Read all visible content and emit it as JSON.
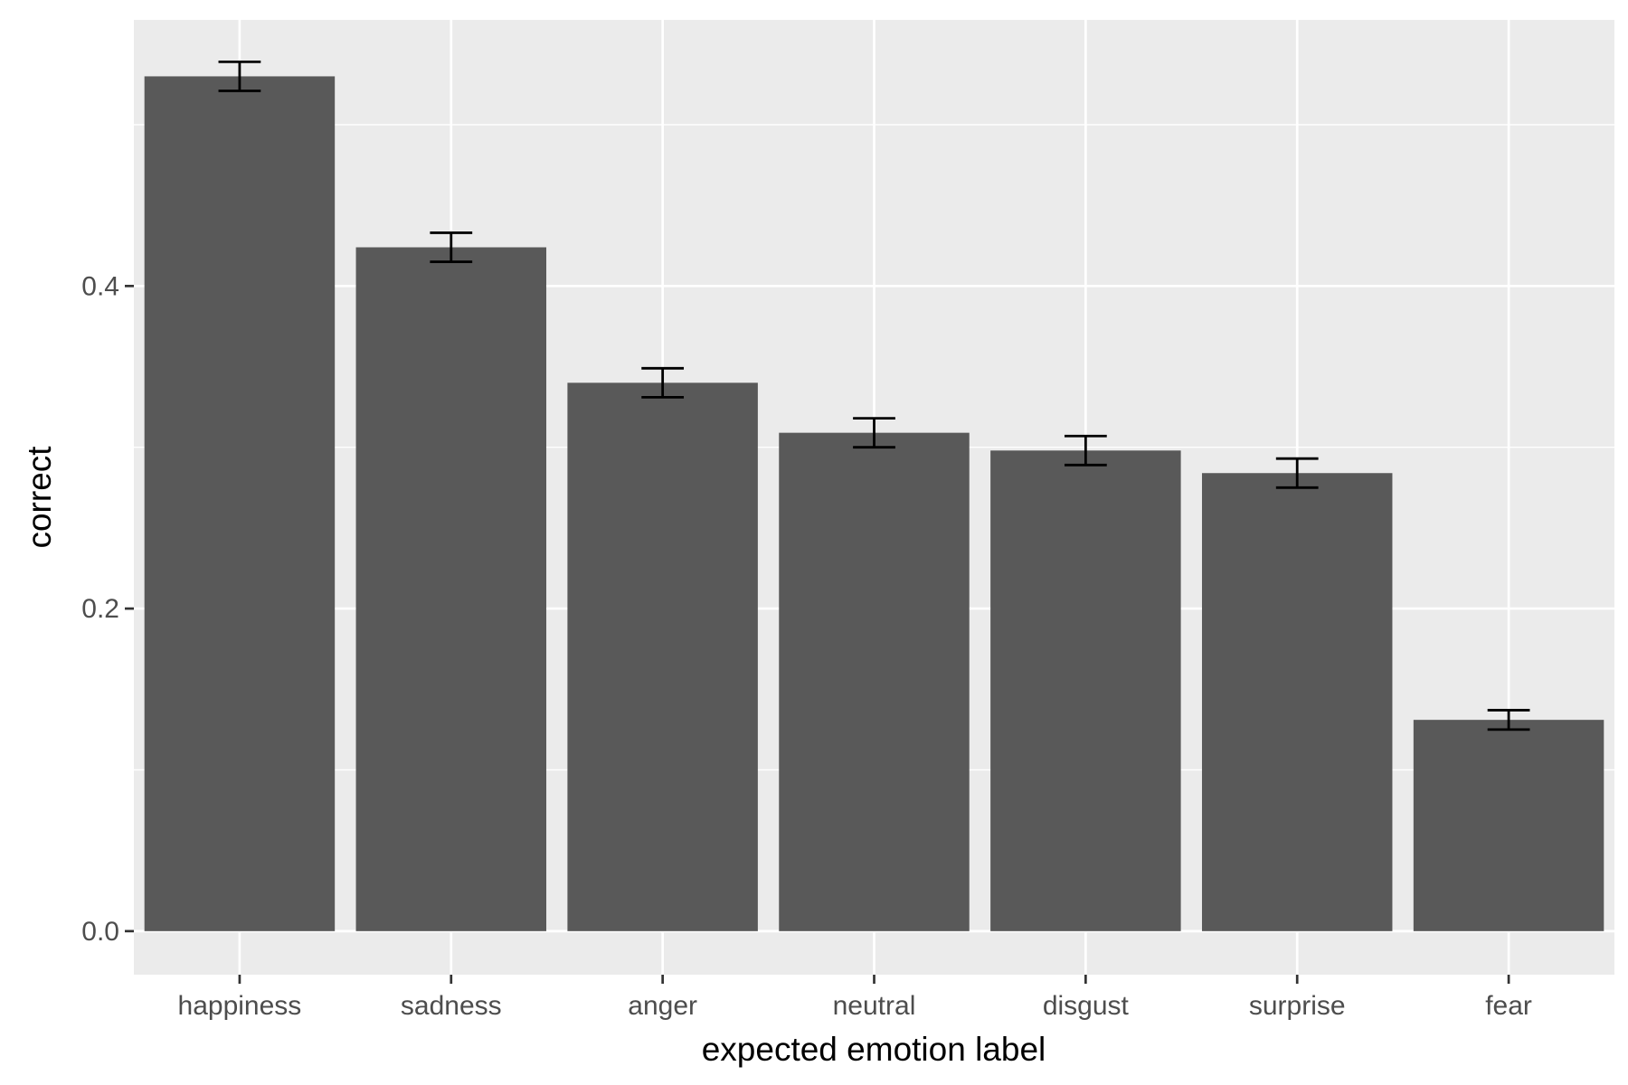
{
  "chart_data": {
    "type": "bar",
    "title": "",
    "xlabel": "expected emotion label",
    "ylabel": "correct",
    "categories": [
      "happiness",
      "sadness",
      "anger",
      "neutral",
      "disgust",
      "surprise",
      "fear"
    ],
    "values": [
      0.53,
      0.424,
      0.34,
      0.309,
      0.298,
      0.284,
      0.131
    ],
    "error_lower": [
      0.521,
      0.415,
      0.331,
      0.3,
      0.289,
      0.275,
      0.125
    ],
    "error_upper": [
      0.539,
      0.433,
      0.349,
      0.318,
      0.307,
      0.293,
      0.137
    ],
    "ylim": [
      -0.027,
      0.565
    ],
    "yticks": [
      0.0,
      0.2,
      0.4
    ],
    "ytick_labels": [
      "0.0",
      "0.2",
      "0.4"
    ],
    "grid": true,
    "legend": "none",
    "colors": {
      "bar": "#595959",
      "panel_background": "#ebebeb",
      "grid": "#ffffff",
      "errorbar": "#000000"
    }
  }
}
